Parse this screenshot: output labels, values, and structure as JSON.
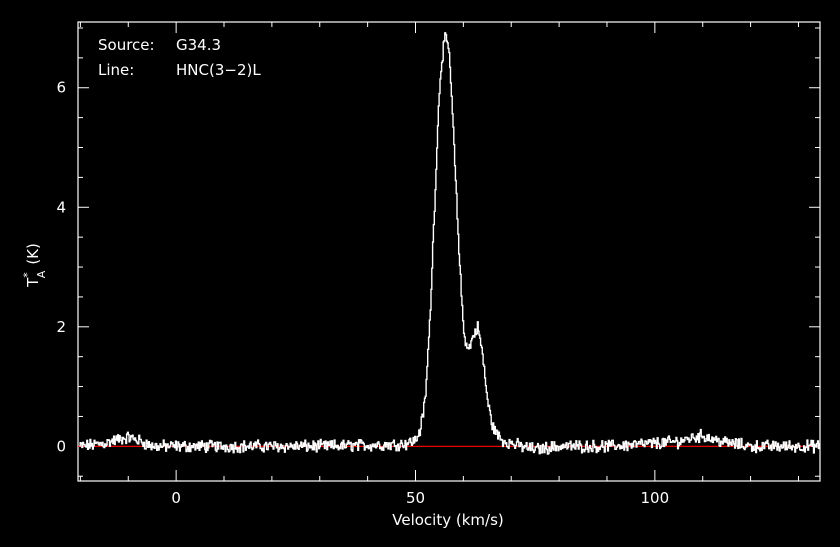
{
  "chart_data": {
    "type": "line",
    "title": "",
    "xlabel": "Velocity (km/s)",
    "ylabel": "T*A (K)",
    "ylabel_main": "T",
    "ylabel_sup": "*",
    "ylabel_sub": "A",
    "ylabel_unit": "(K)",
    "xlim": [
      -20.5,
      134.5
    ],
    "ylim": [
      -0.58,
      7.1
    ],
    "xticks": [
      0,
      50,
      100
    ],
    "yticks": [
      0,
      2,
      4,
      6
    ],
    "xtick_labels": [
      "0",
      "50",
      "100"
    ],
    "ytick_labels": [
      "0",
      "2",
      "4",
      "6"
    ],
    "annotations": {
      "source_label": "Source:",
      "source_value": "G34.3",
      "line_label": "Line:",
      "line_value": "HNC(3−2)L"
    },
    "colors": {
      "background": "#000000",
      "axes": "#ffffff",
      "spectrum": "#ffffff",
      "baseline": "#ff0000"
    },
    "baseline_y": 0,
    "series": [
      {
        "x": [
          -20,
          -15,
          -12,
          -10,
          -8,
          -5,
          0,
          10,
          20,
          30,
          40,
          45,
          48,
          50,
          51,
          52,
          53,
          54,
          55,
          56,
          57,
          58,
          59,
          60,
          61,
          62,
          63,
          64,
          65,
          66,
          67,
          68,
          70,
          72,
          75,
          80,
          90,
          100,
          105,
          108,
          110,
          112,
          115,
          120,
          125,
          130,
          134
        ],
        "y": [
          0.0,
          0.05,
          0.12,
          0.15,
          0.1,
          0.0,
          0.0,
          0.0,
          0.0,
          0.0,
          0.02,
          0.03,
          0.05,
          0.1,
          0.3,
          0.8,
          2.2,
          4.2,
          6.1,
          6.85,
          6.6,
          5.0,
          3.3,
          1.9,
          1.6,
          1.85,
          2.0,
          1.5,
          0.75,
          0.35,
          0.2,
          0.1,
          0.05,
          0.0,
          -0.05,
          0.0,
          0.0,
          0.05,
          0.08,
          0.15,
          0.18,
          0.12,
          0.06,
          0.0,
          0.0,
          0.0,
          0.0
        ]
      }
    ]
  }
}
